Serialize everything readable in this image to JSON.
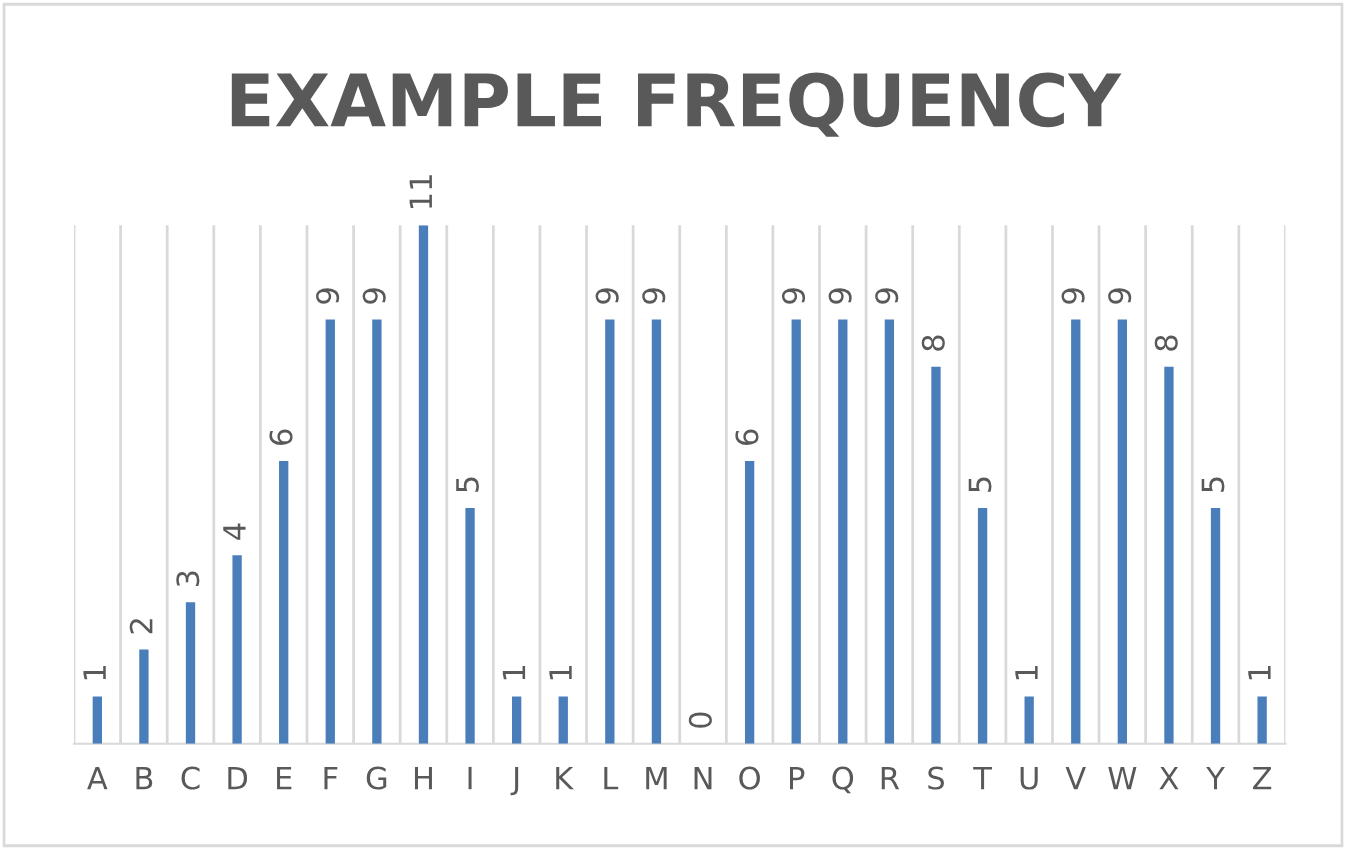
{
  "chart_data": {
    "type": "bar",
    "title": "EXAMPLE FREQUENCY",
    "categories": [
      "A",
      "B",
      "C",
      "D",
      "E",
      "F",
      "G",
      "H",
      "I",
      "J",
      "K",
      "L",
      "M",
      "N",
      "O",
      "P",
      "Q",
      "R",
      "S",
      "T",
      "U",
      "V",
      "W",
      "X",
      "Y",
      "Z"
    ],
    "values": [
      1,
      2,
      3,
      4,
      6,
      9,
      9,
      11,
      5,
      1,
      1,
      9,
      9,
      0,
      6,
      9,
      9,
      9,
      8,
      5,
      1,
      9,
      9,
      8,
      5,
      1
    ],
    "color": "#4a7ebb",
    "data_labels": true,
    "grid": "x"
  }
}
